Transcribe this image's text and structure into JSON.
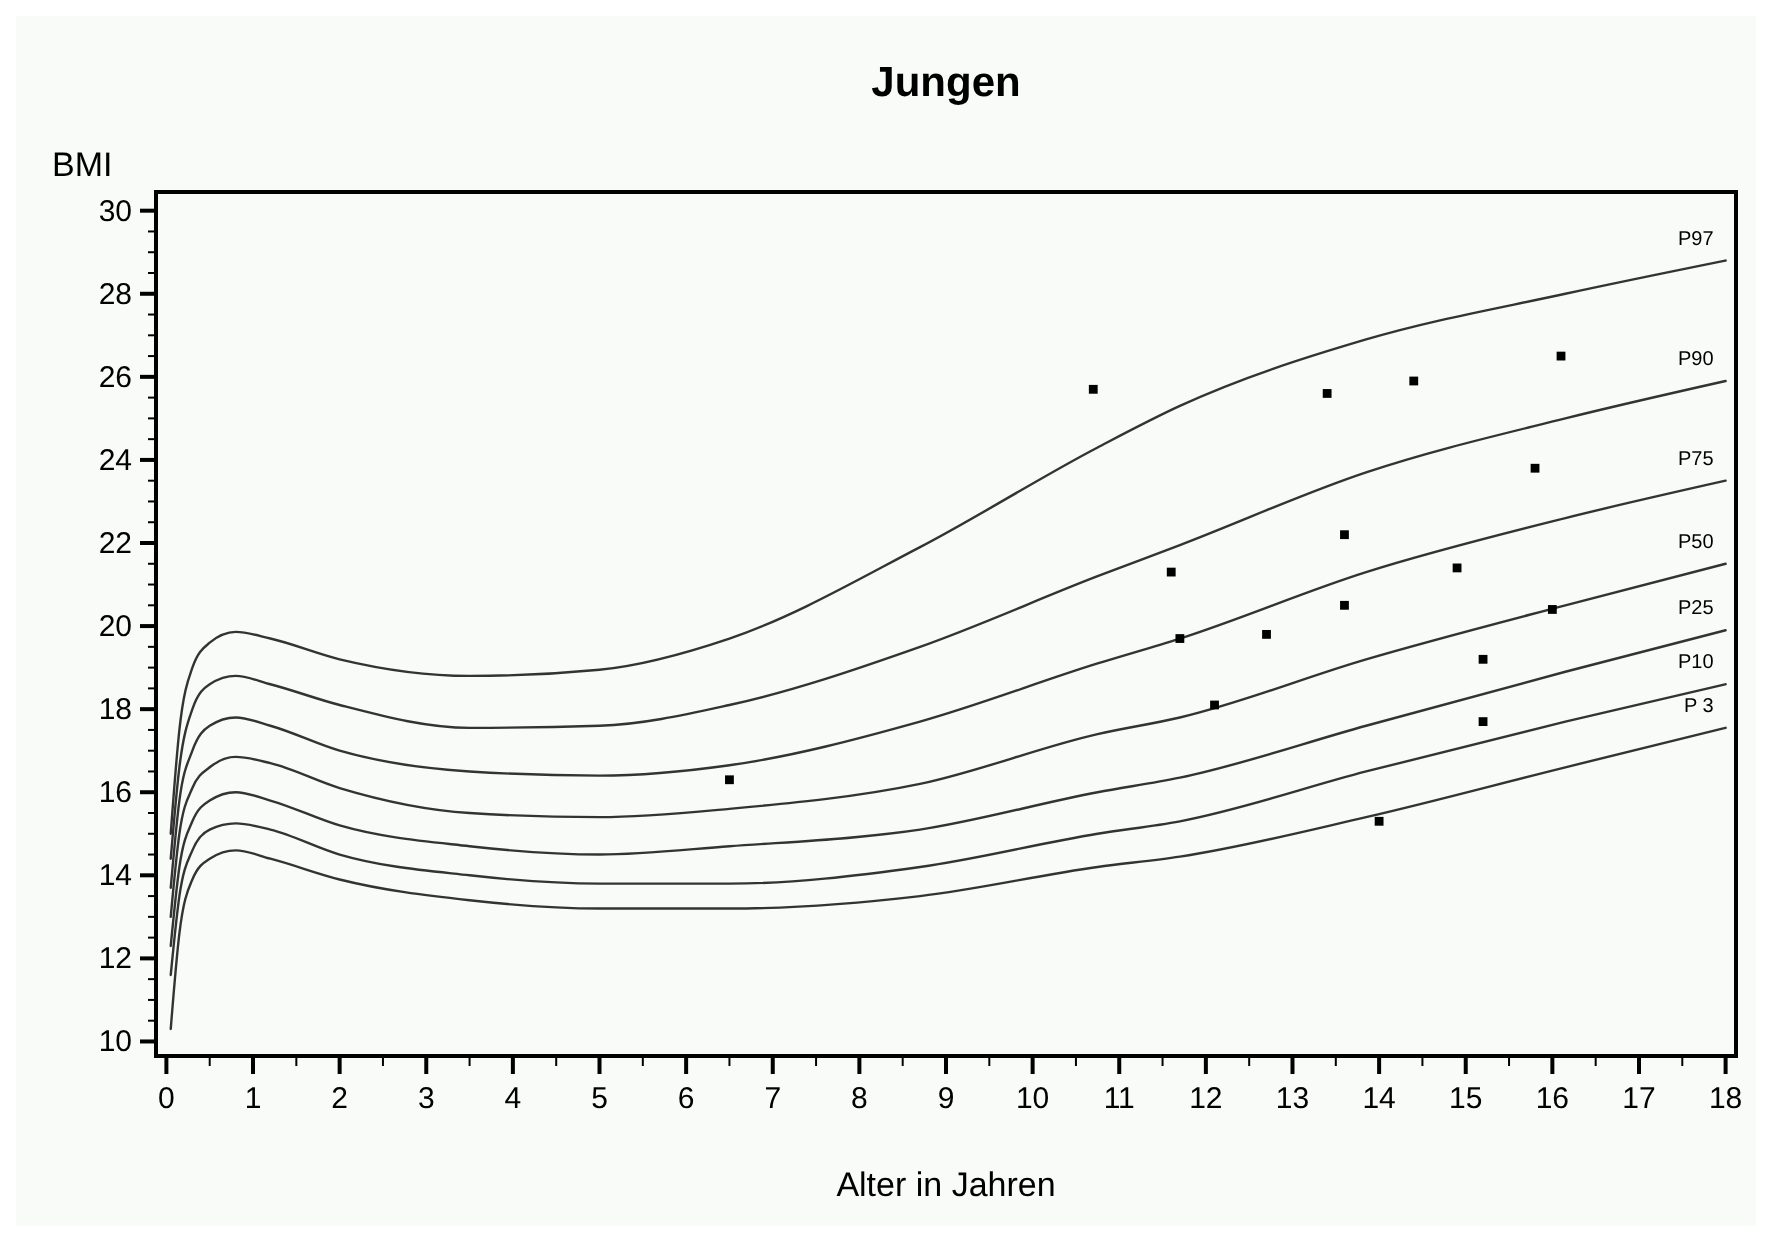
{
  "chart_data": {
    "type": "line",
    "title": "Jungen",
    "xlabel": "Alter in Jahren",
    "ylabel": "BMI",
    "x": [
      0.05,
      0.15,
      0.3,
      0.5,
      0.8,
      1.2,
      2,
      3.5,
      5,
      6.5,
      8.7,
      10.75,
      11.7,
      13.85,
      16.15,
      18
    ],
    "xlim": [
      -0.12,
      18.12
    ],
    "ylim": [
      9.65,
      30.45
    ],
    "xticks": [
      0,
      {
        "value": 0.5,
        "label": null
      },
      1,
      {
        "value": 1.5,
        "label": null
      },
      2,
      {
        "value": 2.5,
        "label": null
      },
      3,
      {
        "value": 3.5,
        "label": null
      },
      4,
      {
        "value": 4.5,
        "label": null
      },
      5,
      {
        "value": 5.5,
        "label": null
      },
      6,
      {
        "value": 6.5,
        "label": null
      },
      7,
      {
        "value": 7.5,
        "label": null
      },
      8,
      {
        "value": 8.5,
        "label": null
      },
      9,
      {
        "value": 9.5,
        "label": null
      },
      10,
      {
        "value": 10.5,
        "label": null
      },
      11,
      {
        "value": 11.5,
        "label": null
      },
      12,
      {
        "value": 12.5,
        "label": null
      },
      13,
      {
        "value": 13.5,
        "label": null
      },
      14,
      {
        "value": 14.5,
        "label": null
      },
      15,
      {
        "value": 15.5,
        "label": null
      },
      16,
      {
        "value": 16.5,
        "label": null
      },
      17,
      {
        "value": 17.5,
        "label": null
      },
      18
    ],
    "yticks": [
      10,
      {
        "value": 10.5,
        "label": null
      },
      {
        "value": 11,
        "label": null
      },
      {
        "value": 11.5,
        "label": null
      },
      12,
      {
        "value": 12.5,
        "label": null
      },
      {
        "value": 13,
        "label": null
      },
      {
        "value": 13.5,
        "label": null
      },
      14,
      {
        "value": 14.5,
        "label": null
      },
      {
        "value": 15,
        "label": null
      },
      {
        "value": 15.5,
        "label": null
      },
      16,
      {
        "value": 16.5,
        "label": null
      },
      {
        "value": 17,
        "label": null
      },
      {
        "value": 17.5,
        "label": null
      },
      18,
      {
        "value": 18.5,
        "label": null
      },
      {
        "value": 19,
        "label": null
      },
      {
        "value": 19.5,
        "label": null
      },
      20,
      {
        "value": 20.5,
        "label": null
      },
      {
        "value": 21,
        "label": null
      },
      {
        "value": 21.5,
        "label": null
      },
      22,
      {
        "value": 22.5,
        "label": null
      },
      {
        "value": 23,
        "label": null
      },
      {
        "value": 23.5,
        "label": null
      },
      24,
      {
        "value": 24.5,
        "label": null
      },
      {
        "value": 25,
        "label": null
      },
      {
        "value": 25.5,
        "label": null
      },
      26,
      {
        "value": 26.5,
        "label": null
      },
      {
        "value": 27,
        "label": null
      },
      {
        "value": 27.5,
        "label": null
      },
      28,
      {
        "value": 28.5,
        "label": null
      },
      {
        "value": 29,
        "label": null
      },
      {
        "value": 29.5,
        "label": null
      },
      30
    ],
    "grid": false,
    "legend": false,
    "marker": "none",
    "line_style": "solid",
    "series": [
      {
        "name": "P97",
        "color": "#333333",
        "values": [
          15.0,
          17.5,
          19.0,
          19.6,
          19.86,
          19.7,
          19.2,
          18.8,
          18.95,
          19.7,
          21.9,
          24.3,
          25.3,
          26.9,
          28.0,
          28.8
        ]
      },
      {
        "name": "P90",
        "color": "#333333",
        "values": [
          14.4,
          16.6,
          18.0,
          18.6,
          18.8,
          18.6,
          18.1,
          17.55,
          17.6,
          18.1,
          19.5,
          21.2,
          21.95,
          23.7,
          25.0,
          25.9
        ]
      },
      {
        "name": "P75",
        "color": "#333333",
        "values": [
          13.7,
          15.8,
          17.0,
          17.6,
          17.8,
          17.6,
          17.0,
          16.5,
          16.4,
          16.65,
          17.7,
          19.1,
          19.7,
          21.3,
          22.6,
          23.5
        ]
      },
      {
        "name": "P50",
        "color": "#333333",
        "values": [
          13.0,
          15.0,
          16.1,
          16.6,
          16.85,
          16.7,
          16.1,
          15.5,
          15.4,
          15.6,
          16.2,
          17.4,
          17.8,
          19.2,
          20.5,
          21.5
        ]
      },
      {
        "name": "P25",
        "color": "#333333",
        "values": [
          12.3,
          14.2,
          15.3,
          15.8,
          16.0,
          15.8,
          15.2,
          14.7,
          14.5,
          14.7,
          15.1,
          16.0,
          16.35,
          17.6,
          18.9,
          19.9
        ]
      },
      {
        "name": "P10",
        "color": "#333333",
        "values": [
          11.6,
          13.5,
          14.6,
          15.1,
          15.25,
          15.1,
          14.5,
          14.0,
          13.8,
          13.8,
          14.2,
          15.0,
          15.3,
          16.5,
          17.7,
          18.6
        ]
      },
      {
        "name": "P 3",
        "color": "#333333",
        "values": [
          10.3,
          12.6,
          13.9,
          14.4,
          14.6,
          14.4,
          13.9,
          13.4,
          13.2,
          13.2,
          13.5,
          14.2,
          14.45,
          15.4,
          16.6,
          17.55
        ]
      },
      {
        "type": "scatter",
        "color": "#000000",
        "marker": "square",
        "x": [
          6.5,
          10.7,
          13.4,
          14.4,
          16.1,
          15.8,
          13.6,
          11.6,
          14.9,
          13.6,
          16.0,
          11.7,
          12.7,
          15.2,
          12.1,
          15.2,
          14.0
        ],
        "values": [
          16.3,
          25.7,
          25.6,
          25.9,
          26.5,
          23.8,
          22.2,
          21.3,
          21.4,
          20.5,
          20.4,
          19.7,
          19.8,
          19.2,
          18.1,
          17.7,
          15.3
        ]
      }
    ]
  }
}
